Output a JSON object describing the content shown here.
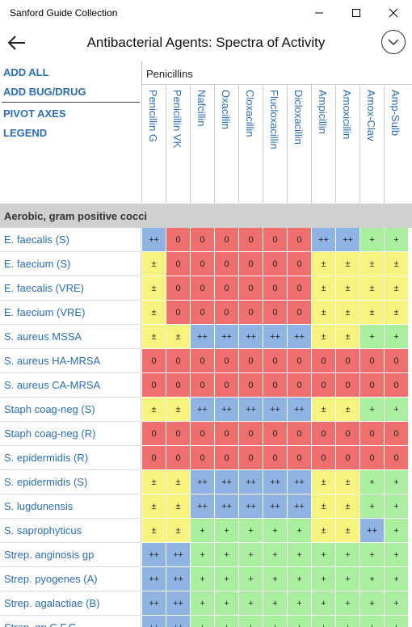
{
  "window": {
    "title": "Sanford Guide Collection",
    "min_label": "—",
    "max_label": "☐",
    "close_label": "✕"
  },
  "appbar": {
    "title": "Antibacterial Agents: Spectra of Activity"
  },
  "sidebar": {
    "add_all": "ADD ALL",
    "add_bug_drug": "ADD BUG/DRUG",
    "pivot_axes": "PIVOT AXES",
    "legend": "LEGEND"
  },
  "colors": {
    "pp": "#8fb3e2",
    "zero": "#ef6f6f",
    "pm": "#f7f37f",
    "plus": "#a9ef9f"
  },
  "group": {
    "label": "Penicillins"
  },
  "columns": [
    "Penicillin G",
    "Penicillin VK",
    "Nafcillin",
    "Oxacillin",
    "Cloxacillin",
    "Flucloxacillin",
    "Dicloxacillin",
    "Ampicillin",
    "Amoxicillin",
    "Amox-Clav",
    "Amp-Sulb"
  ],
  "section": {
    "label": "Aerobic, gram positive cocci"
  },
  "rows": [
    {
      "label": "E. faecalis (S)",
      "values": [
        "++",
        "0",
        "0",
        "0",
        "0",
        "0",
        "0",
        "++",
        "++",
        "+",
        "+"
      ]
    },
    {
      "label": "E. faecium (S)",
      "values": [
        "±",
        "0",
        "0",
        "0",
        "0",
        "0",
        "0",
        "±",
        "±",
        "±",
        "±"
      ]
    },
    {
      "label": "E. faecalis (VRE)",
      "values": [
        "±",
        "0",
        "0",
        "0",
        "0",
        "0",
        "0",
        "±",
        "±",
        "±",
        "±"
      ]
    },
    {
      "label": "E. faecium (VRE)",
      "values": [
        "±",
        "0",
        "0",
        "0",
        "0",
        "0",
        "0",
        "±",
        "±",
        "±",
        "±"
      ]
    },
    {
      "label": "S. aureus MSSA",
      "values": [
        "±",
        "±",
        "++",
        "++",
        "++",
        "++",
        "++",
        "±",
        "±",
        "+",
        "+"
      ]
    },
    {
      "label": "S. aureus HA-MRSA",
      "values": [
        "0",
        "0",
        "0",
        "0",
        "0",
        "0",
        "0",
        "0",
        "0",
        "0",
        "0"
      ]
    },
    {
      "label": "S. aureus CA-MRSA",
      "values": [
        "0",
        "0",
        "0",
        "0",
        "0",
        "0",
        "0",
        "0",
        "0",
        "0",
        "0"
      ]
    },
    {
      "label": "Staph coag-neg (S)",
      "values": [
        "±",
        "±",
        "++",
        "++",
        "++",
        "++",
        "++",
        "±",
        "±",
        "+",
        "+"
      ]
    },
    {
      "label": "Staph coag-neg (R)",
      "values": [
        "0",
        "0",
        "0",
        "0",
        "0",
        "0",
        "0",
        "0",
        "0",
        "0",
        "0"
      ]
    },
    {
      "label": "S. epidermidis (R)",
      "values": [
        "0",
        "0",
        "0",
        "0",
        "0",
        "0",
        "0",
        "0",
        "0",
        "0",
        "0"
      ]
    },
    {
      "label": "S. epidermidis (S)",
      "values": [
        "±",
        "±",
        "++",
        "++",
        "++",
        "++",
        "++",
        "±",
        "±",
        "+",
        "+"
      ]
    },
    {
      "label": "S. lugdunensis",
      "values": [
        "±",
        "±",
        "++",
        "++",
        "++",
        "++",
        "++",
        "±",
        "±",
        "+",
        "+"
      ]
    },
    {
      "label": "S. saprophyticus",
      "values": [
        "±",
        "±",
        "+",
        "+",
        "+",
        "+",
        "+",
        "±",
        "±",
        "++",
        "+"
      ]
    },
    {
      "label": "Strep. anginosis gp",
      "values": [
        "++",
        "++",
        "+",
        "+",
        "+",
        "+",
        "+",
        "+",
        "+",
        "+",
        "+"
      ]
    },
    {
      "label": "Strep. pyogenes (A)",
      "values": [
        "++",
        "++",
        "+",
        "+",
        "+",
        "+",
        "+",
        "+",
        "+",
        "+",
        "+"
      ]
    },
    {
      "label": "Strep. agalactiae (B)",
      "values": [
        "++",
        "++",
        "+",
        "+",
        "+",
        "+",
        "+",
        "+",
        "+",
        "+",
        "+"
      ]
    },
    {
      "label": "Strep. gp C,F,G",
      "values": [
        "++",
        "++",
        "+",
        "+",
        "+",
        "+",
        "+",
        "+",
        "+",
        "+",
        "+"
      ]
    }
  ]
}
